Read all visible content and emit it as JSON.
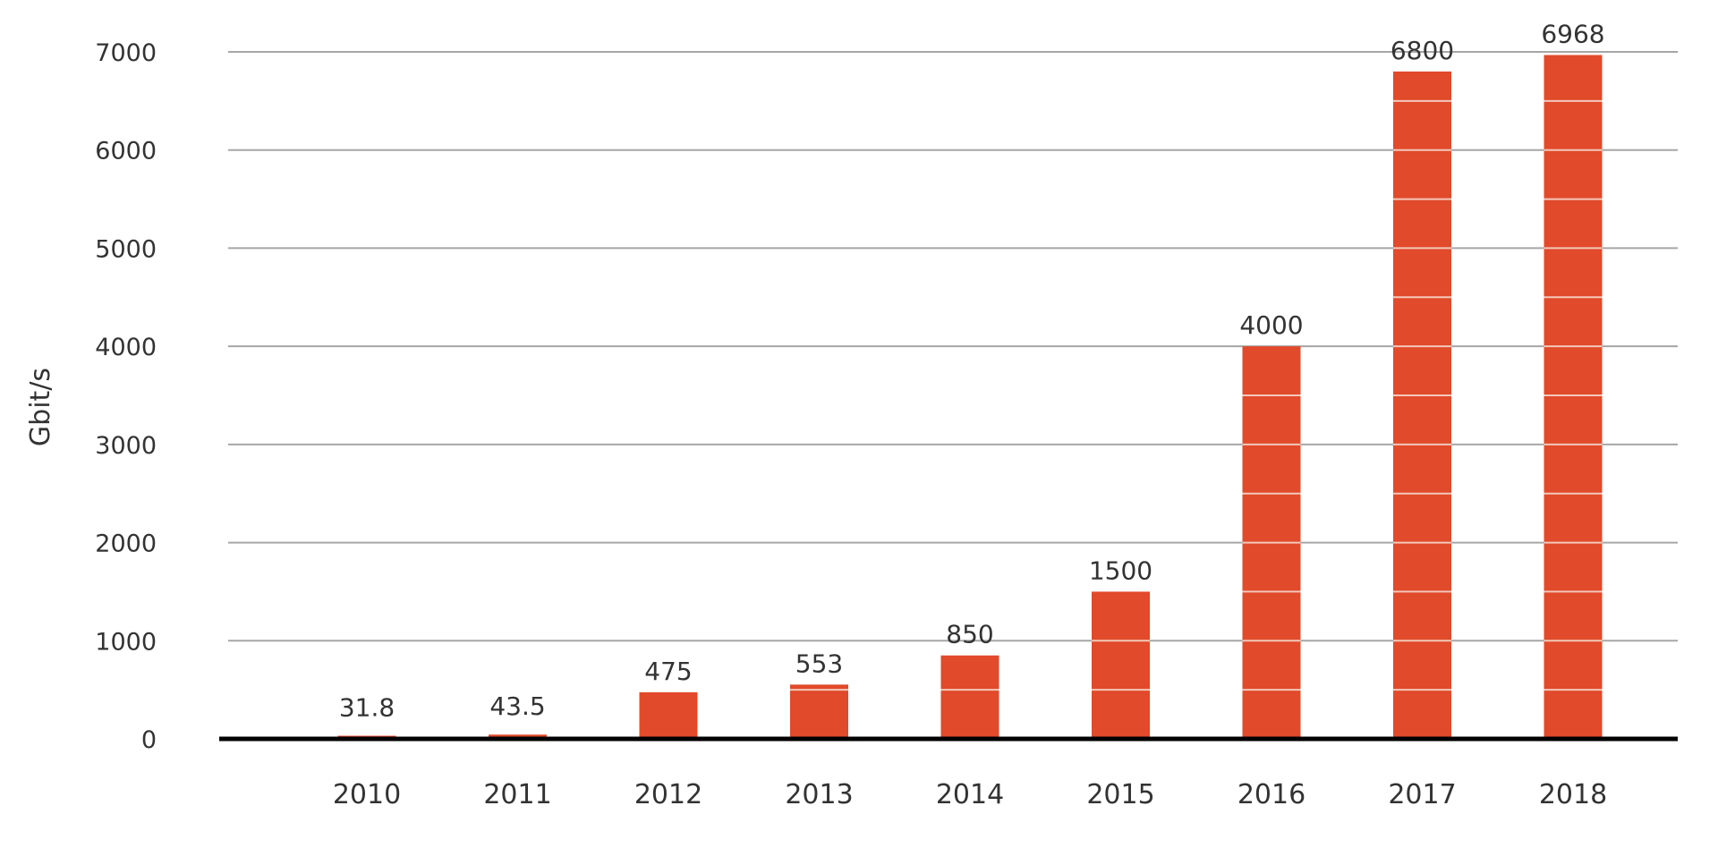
{
  "chart_data": {
    "type": "bar",
    "categories": [
      "2010",
      "2011",
      "2012",
      "2013",
      "2014",
      "2015",
      "2016",
      "2017",
      "2018"
    ],
    "values": [
      31.8,
      43.5,
      475,
      553,
      850,
      1500,
      4000,
      6800,
      6968
    ],
    "data_labels": [
      "31.8",
      "43.5",
      "475",
      "553",
      "850",
      "1500",
      "4000",
      "6800",
      "6968"
    ],
    "ylabel": "Gbit/s",
    "yticks": [
      0,
      1000,
      2000,
      3000,
      4000,
      5000,
      6000,
      7000
    ],
    "ytick_labels": [
      "0",
      "1000",
      "2000",
      "3000",
      "4000",
      "5000",
      "6000",
      "7000"
    ],
    "ylim": [
      0,
      7000
    ],
    "grid": true,
    "legend": "none"
  },
  "colors": {
    "bar": "#e14a2a",
    "bar_stripe": "#f4c7ba",
    "grid": "#a6a6a6",
    "baseline": "#000000",
    "text": "#333333"
  }
}
